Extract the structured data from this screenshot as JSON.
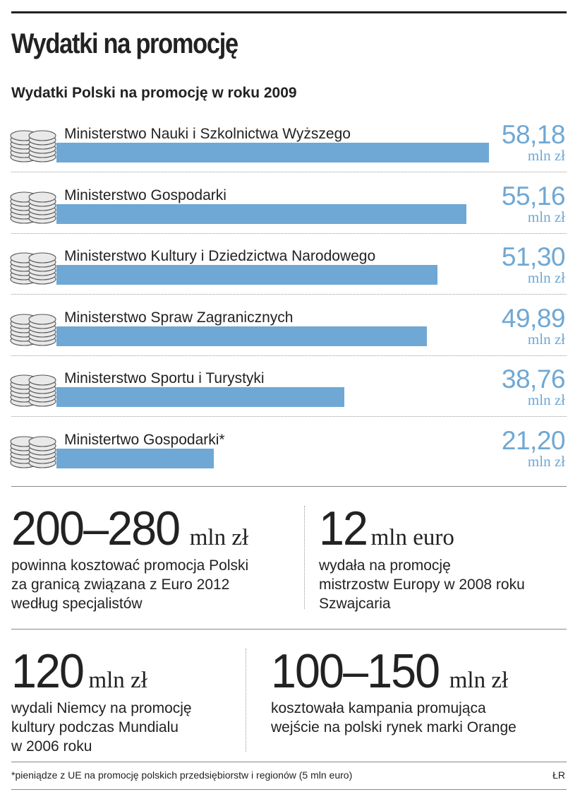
{
  "title": "Wydatki na promocję",
  "chart_data": {
    "type": "bar",
    "orientation": "horizontal",
    "title": "Wydatki Polski na promocję w roku 2009",
    "categories": [
      "Ministerstwo Nauki i Szkolnictwa Wyższego",
      "Ministerstwo Gospodarki",
      "Ministerstwo Kultury i Dziedzictwa Narodowego",
      "Ministerstwo Spraw Zagranicznych",
      "Ministerstwo Sportu i Turystyki",
      "Ministertwo Gospodarki*"
    ],
    "values": [
      58.18,
      55.16,
      51.3,
      49.89,
      38.76,
      21.2
    ],
    "value_labels": [
      "58,18",
      "55,16",
      "51,30",
      "49,89",
      "38,76",
      "21,20"
    ],
    "unit": "mln zł",
    "xlim": [
      0,
      60
    ],
    "grid": false,
    "legend": "none",
    "colors": {
      "bar": "#6fa8d4",
      "value_text": "#6fa8d4"
    }
  },
  "stats": [
    {
      "number": "200–280",
      "unit": "mln zł",
      "lines": [
        "powinna kosztować promocja Polski",
        "za granicą związana z Euro 2012",
        "według specjalistów"
      ]
    },
    {
      "number": "12",
      "unit": "mln euro",
      "lines": [
        "wydała na promocję",
        "mistrzostw Europy w 2008 roku",
        "Szwajcaria"
      ]
    },
    {
      "number": "120",
      "unit": "mln zł",
      "lines": [
        "wydali Niemcy na promocję",
        "kultury podczas Mundialu",
        "w 2006 roku"
      ]
    },
    {
      "number": "100–150",
      "unit": "mln zł",
      "lines": [
        "kosztowała kampania promująca",
        "wejście na polski rynek marki Orange"
      ]
    }
  ],
  "footnote": "*pieniądze z UE na promocję polskich przedsiębiorstw i regionów (5 mln euro)",
  "source": "ŁR",
  "icons": {
    "row_icon": "coin-stack-icon"
  }
}
